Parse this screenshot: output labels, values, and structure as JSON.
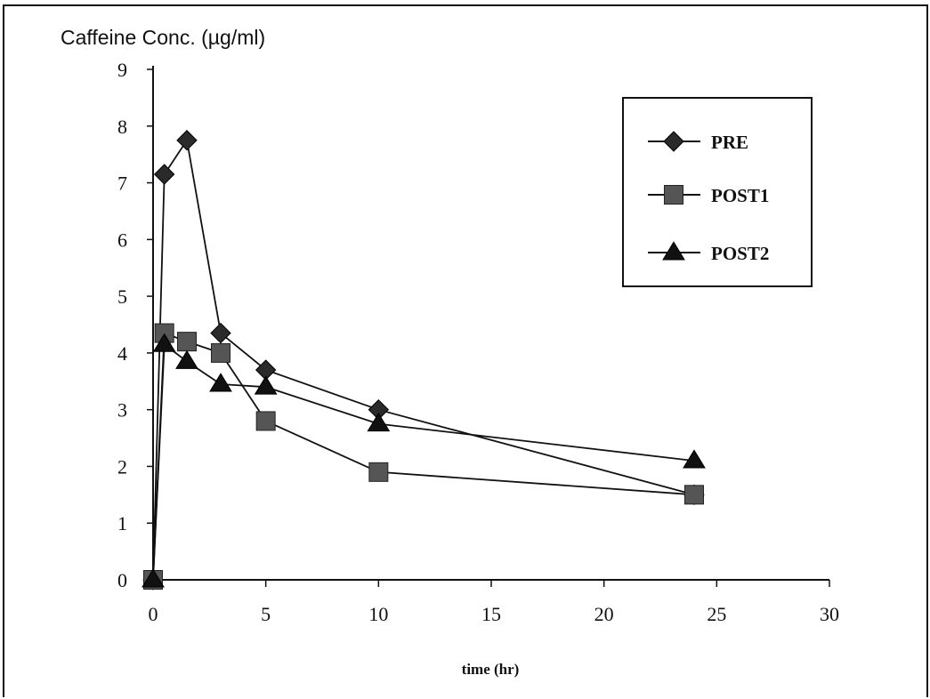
{
  "chart_data": {
    "type": "line",
    "title": "",
    "ylabel": "Caffeine Conc. (µg/ml)",
    "xlabel": "time (hr)",
    "xlim": [
      0,
      30
    ],
    "ylim": [
      0,
      9
    ],
    "x_ticks": [
      "0",
      "5",
      "10",
      "15",
      "20",
      "25",
      "30"
    ],
    "y_ticks": [
      "0",
      "1",
      "2",
      "3",
      "4",
      "5",
      "6",
      "7",
      "8",
      "9"
    ],
    "grid": false,
    "legend_position": "top-right",
    "series": [
      {
        "name": "PRE",
        "marker": "diamond",
        "color": "#2a2a2a",
        "x": [
          0,
          0.5,
          1.5,
          3,
          5,
          10,
          24
        ],
        "y": [
          0,
          7.15,
          7.75,
          4.35,
          3.7,
          3.0,
          1.5
        ]
      },
      {
        "name": "POST1",
        "marker": "square",
        "color": "#555555",
        "x": [
          0,
          0.5,
          1.5,
          3,
          5,
          10,
          24
        ],
        "y": [
          0,
          4.35,
          4.2,
          4.0,
          2.8,
          1.9,
          1.5
        ]
      },
      {
        "name": "POST2",
        "marker": "triangle",
        "color": "#111111",
        "x": [
          0,
          0.5,
          1.5,
          3,
          5,
          10,
          24
        ],
        "y": [
          0,
          4.15,
          3.85,
          3.45,
          3.4,
          2.75,
          2.1
        ]
      }
    ]
  }
}
